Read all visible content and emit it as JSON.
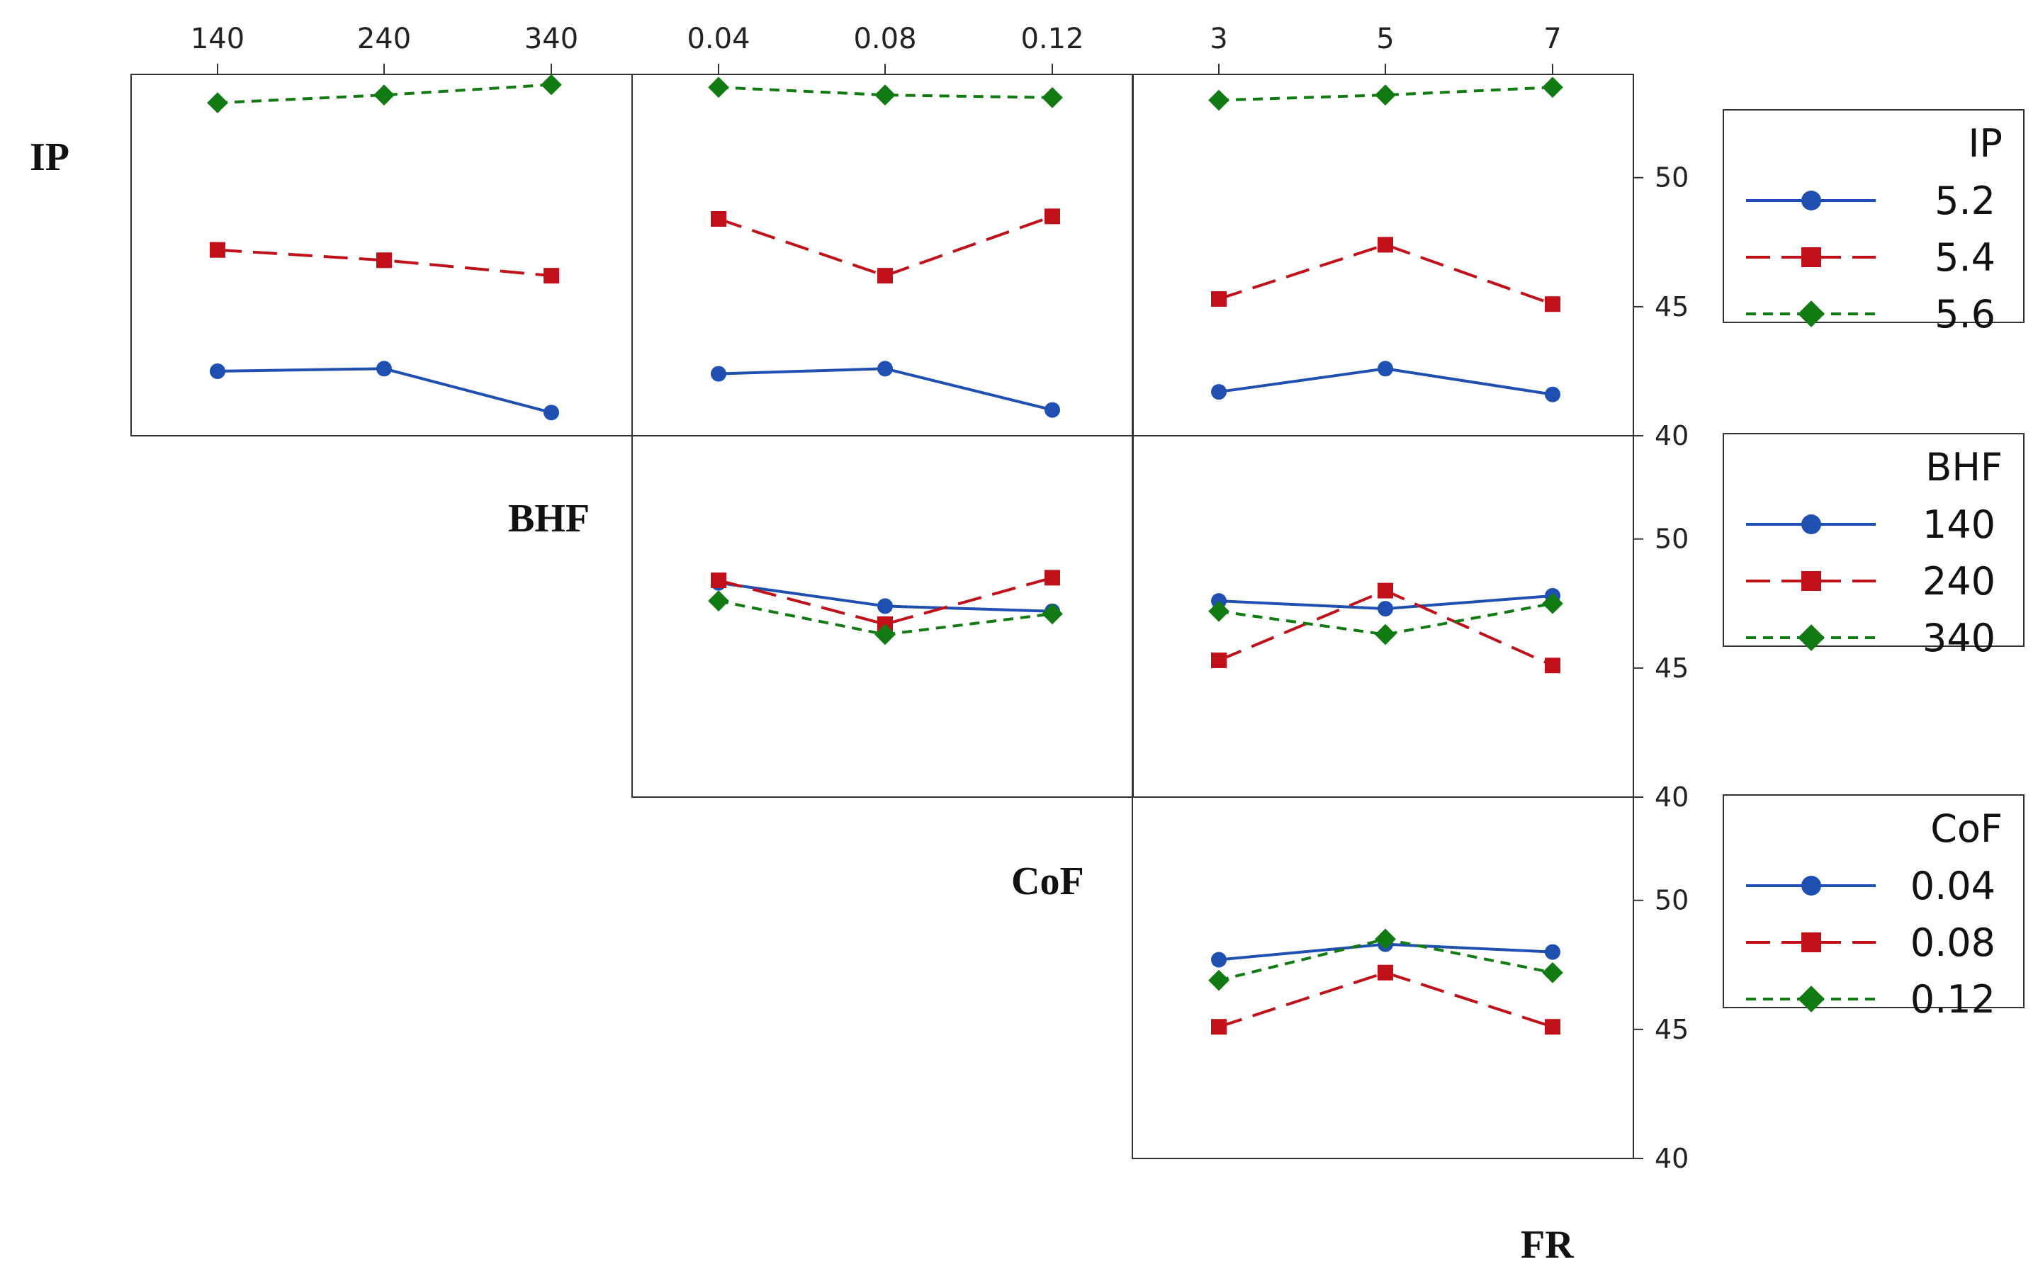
{
  "chart_data": {
    "type": "line",
    "title": "",
    "ylim": [
      40,
      54
    ],
    "y_ticks": [
      40,
      45,
      50
    ],
    "factors": [
      {
        "name": "IP",
        "levels": [
          "5.2",
          "5.4",
          "5.6"
        ]
      },
      {
        "name": "BHF",
        "levels": [
          "140",
          "240",
          "340"
        ]
      },
      {
        "name": "CoF",
        "levels": [
          "0.04",
          "0.08",
          "0.12"
        ]
      },
      {
        "name": "FR",
        "levels": [
          "3",
          "5",
          "7"
        ]
      }
    ],
    "row_labels": [
      "IP",
      "BHF",
      "CoF"
    ],
    "column_label_final": "FR",
    "top_ticks": [
      [
        "140",
        "240",
        "340"
      ],
      [
        "0.04",
        "0.08",
        "0.12"
      ],
      [
        "3",
        "5",
        "7"
      ]
    ],
    "series_styles": [
      {
        "color": "#1f4fb0",
        "dash": "none",
        "marker": "circle"
      },
      {
        "color": "#c0111a",
        "dash": "dashed",
        "marker": "square"
      },
      {
        "color": "#127a12",
        "dash": "dotted",
        "marker": "diamond"
      }
    ],
    "legends": [
      {
        "title": "IP",
        "entries": [
          "5.2",
          "5.4",
          "5.6"
        ]
      },
      {
        "title": "BHF",
        "entries": [
          "140",
          "240",
          "340"
        ]
      },
      {
        "title": "CoF",
        "entries": [
          "0.04",
          "0.08",
          "0.12"
        ]
      }
    ],
    "panels": [
      {
        "row": 0,
        "col": 0,
        "x_factor": "BHF",
        "trace_factor": "IP",
        "series": [
          {
            "name": "5.2",
            "values": [
              42.5,
              42.6,
              40.9
            ]
          },
          {
            "name": "5.4",
            "values": [
              47.2,
              46.8,
              46.2
            ]
          },
          {
            "name": "5.6",
            "values": [
              52.9,
              53.2,
              53.6
            ]
          }
        ]
      },
      {
        "row": 0,
        "col": 1,
        "x_factor": "CoF",
        "trace_factor": "IP",
        "series": [
          {
            "name": "5.2",
            "values": [
              42.4,
              42.6,
              41.0
            ]
          },
          {
            "name": "5.4",
            "values": [
              48.4,
              46.2,
              48.5
            ]
          },
          {
            "name": "5.6",
            "values": [
              53.5,
              53.2,
              53.1
            ]
          }
        ]
      },
      {
        "row": 0,
        "col": 2,
        "x_factor": "FR",
        "trace_factor": "IP",
        "series": [
          {
            "name": "5.2",
            "values": [
              41.7,
              42.6,
              41.6
            ]
          },
          {
            "name": "5.4",
            "values": [
              45.3,
              47.4,
              45.1
            ]
          },
          {
            "name": "5.6",
            "values": [
              53.0,
              53.2,
              53.5
            ]
          }
        ]
      },
      {
        "row": 1,
        "col": 1,
        "x_factor": "CoF",
        "trace_factor": "BHF",
        "series": [
          {
            "name": "140",
            "values": [
              48.3,
              47.4,
              47.2
            ]
          },
          {
            "name": "240",
            "values": [
              48.4,
              46.7,
              48.5
            ]
          },
          {
            "name": "340",
            "values": [
              47.6,
              46.3,
              47.1
            ]
          }
        ]
      },
      {
        "row": 1,
        "col": 2,
        "x_factor": "FR",
        "trace_factor": "BHF",
        "series": [
          {
            "name": "140",
            "values": [
              47.6,
              47.3,
              47.8
            ]
          },
          {
            "name": "240",
            "values": [
              45.3,
              48.0,
              45.1
            ]
          },
          {
            "name": "340",
            "values": [
              47.2,
              46.3,
              47.5
            ]
          }
        ]
      },
      {
        "row": 2,
        "col": 2,
        "x_factor": "FR",
        "trace_factor": "CoF",
        "series": [
          {
            "name": "0.04",
            "values": [
              47.7,
              48.3,
              48.0
            ]
          },
          {
            "name": "0.08",
            "values": [
              45.1,
              47.2,
              45.1
            ]
          },
          {
            "name": "0.12",
            "values": [
              46.9,
              48.5,
              47.2
            ]
          }
        ]
      }
    ]
  }
}
